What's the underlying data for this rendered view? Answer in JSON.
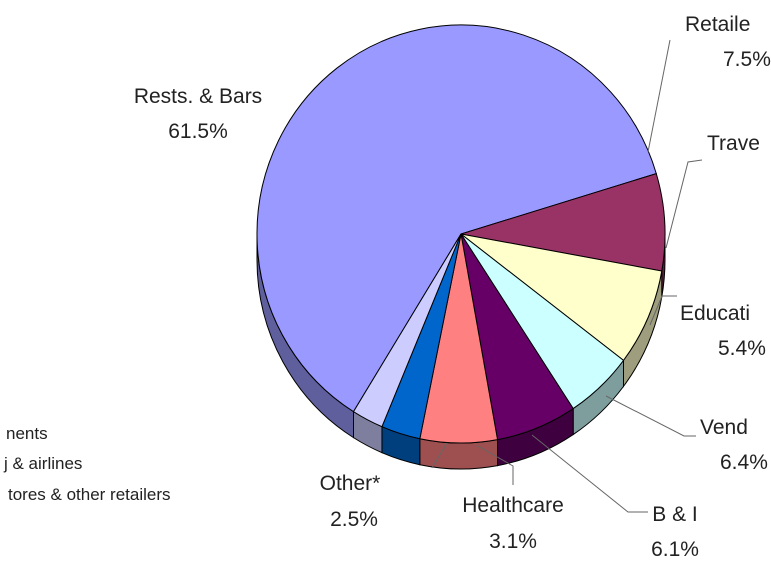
{
  "chart_data": {
    "type": "pie",
    "title": "",
    "slices": [
      {
        "name": "Rests. & Bars",
        "value": 61.5,
        "label": "61.5%",
        "color": "#9999ff"
      },
      {
        "name": "Retailers",
        "value": 7.5,
        "label": "7.5%",
        "color": "#993366"
      },
      {
        "name": "Travel",
        "value": 7.5,
        "label": "",
        "color": "#ffffcc"
      },
      {
        "name": "Education",
        "value": 5.4,
        "label": "5.4%",
        "color": "#ccffff"
      },
      {
        "name": "Vending",
        "value": 6.4,
        "label": "6.4%",
        "color": "#660066"
      },
      {
        "name": "B & I",
        "value": 6.1,
        "label": "6.1%",
        "color": "#ff8080"
      },
      {
        "name": "Healthcare",
        "value": 3.1,
        "label": "3.1%",
        "color": "#0066cc"
      },
      {
        "name": "Other*",
        "value": 2.5,
        "label": "2.5%",
        "color": "#ccccff"
      }
    ],
    "visible_label_text": {
      "Rests. & Bars": "Rests. & Bars",
      "Retailers": "Retaile",
      "Travel": "Trave",
      "Education": "Educati",
      "Vending": "Vend",
      "B & I": "B & I",
      "Healthcare": "Healthcare",
      "Other*": "Other*"
    },
    "visible_value_text": {
      "Retailers": "7.5%",
      "Education": "5.4%",
      "Vending": "6.4%"
    },
    "footnote_lines": [
      "nents",
      "j & airlines",
      "tores & other retailers"
    ]
  }
}
